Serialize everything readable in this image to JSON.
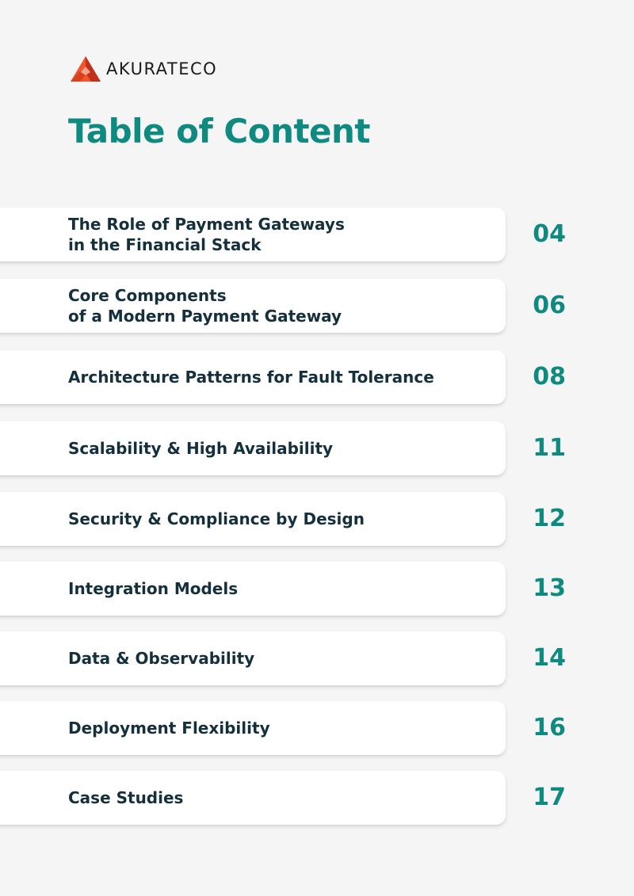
{
  "brand": {
    "name": "AKURATECO",
    "logo_icon": "akurateco-logo-icon",
    "colors": {
      "logo_light": "#f0552e",
      "logo_dark": "#c0301a"
    }
  },
  "title": "Table of Content",
  "colors": {
    "accent": "#0f8a80",
    "heading_text": "#14303d",
    "card_background": "#ffffff",
    "page_background": "#f5f5f5"
  },
  "toc": [
    {
      "label": "The Role of Payment Gateways\nin the Financial Stack",
      "page": "04"
    },
    {
      "label": "Core Components\nof a Modern Payment Gateway",
      "page": "06"
    },
    {
      "label": "Architecture Patterns for Fault Tolerance",
      "page": "08"
    },
    {
      "label": "Scalability & High Availability",
      "page": "11"
    },
    {
      "label": "Security & Compliance by Design",
      "page": "12"
    },
    {
      "label": "Integration Models",
      "page": "13"
    },
    {
      "label": "Data & Observability",
      "page": "14"
    },
    {
      "label": "Deployment Flexibility",
      "page": "16"
    },
    {
      "label": "Case Studies",
      "page": "17"
    }
  ]
}
